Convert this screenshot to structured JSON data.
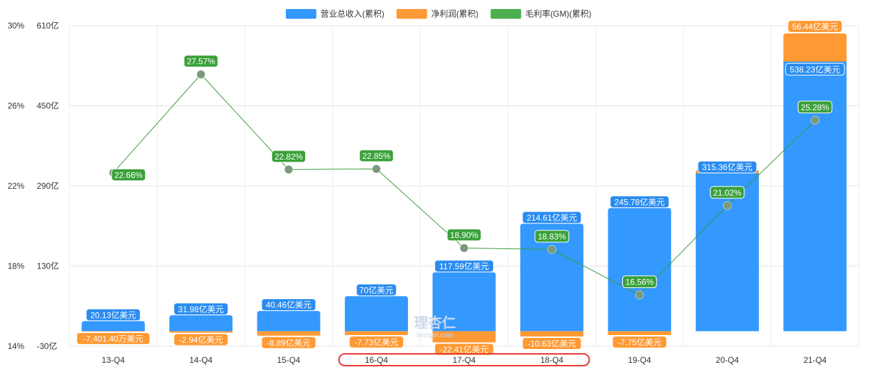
{
  "chart_data": {
    "type": "bar",
    "categories": [
      "13-Q4",
      "14-Q4",
      "15-Q4",
      "16-Q4",
      "17-Q4",
      "18-Q4",
      "19-Q4",
      "20-Q4",
      "21-Q4"
    ],
    "series": [
      {
        "name": "营业总收入(累积)",
        "kind": "bar",
        "color": "#3399ff",
        "values": [
          20.13,
          31.98,
          40.46,
          70,
          117.59,
          214.61,
          245.78,
          315.36,
          538.23
        ],
        "labels": [
          "20.13亿美元",
          "31.98亿美元",
          "40.46亿美元",
          "70亿美元",
          "117.59亿美元",
          "214.61亿美元",
          "245.78亿美元",
          "315.36亿美元",
          "538.23亿美元"
        ]
      },
      {
        "name": "净利润(累积)",
        "kind": "bar",
        "color": "#ff9933",
        "values": [
          -0.74014,
          -2.94,
          -8.89,
          -7.73,
          -22.41,
          -10.63,
          -7.75,
          7.21,
          56.44
        ],
        "labels": [
          "-7,401.40万美元",
          "-2.94亿美元",
          "-8.89亿美元",
          "-7.73亿美元",
          "-22.41亿美元",
          "-10.63亿美元",
          "-7.75亿美元",
          "",
          "56.44亿美元"
        ]
      },
      {
        "name": "毛利率(GM)(累积)",
        "kind": "line",
        "color": "#4caf50",
        "values": [
          22.66,
          27.57,
          22.82,
          22.85,
          18.9,
          18.83,
          16.56,
          21.02,
          25.28
        ],
        "labels": [
          "22.66%",
          "27.57%",
          "22.82%",
          "22.85%",
          "18.90%",
          "18.83%",
          "16.56%",
          "21.02%",
          "25.28%"
        ]
      }
    ],
    "left_axis": {
      "ticks": [
        "14%",
        "18%",
        "22%",
        "26%",
        "30%"
      ],
      "range": [
        14,
        30
      ]
    },
    "right_axis": {
      "ticks": [
        "-30亿",
        "130亿",
        "290亿",
        "450亿",
        "610亿"
      ],
      "range": [
        -30,
        610
      ]
    },
    "grid": true,
    "legend_position": "top-center",
    "highlight": {
      "categories": [
        "16-Q4",
        "17-Q4",
        "18-Q4"
      ],
      "color": "#e53935"
    },
    "watermark": {
      "line1": "理杏仁",
      "line2": "lixinger.com"
    }
  }
}
